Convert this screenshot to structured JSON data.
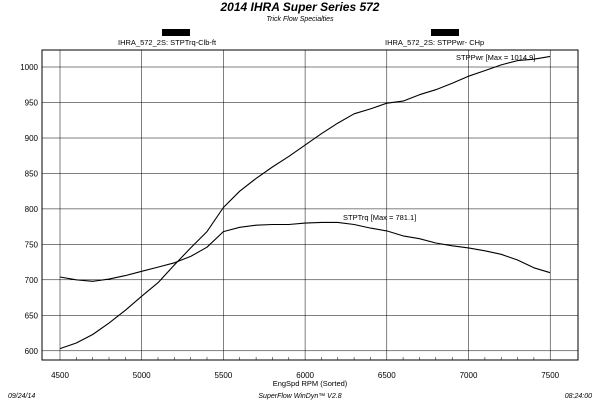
{
  "chart_data": {
    "type": "line",
    "title": "2014 IHRA Super Series 572",
    "subtitle": "Trick Flow Specialties",
    "xlabel": "EngSpd  RPM   (Sorted)",
    "x_ticks": [
      4500,
      5000,
      5500,
      6000,
      6500,
      7000,
      7500
    ],
    "y_ticks": [
      600,
      650,
      700,
      750,
      800,
      850,
      900,
      950,
      1000
    ],
    "xlim": [
      4390,
      7670
    ],
    "ylim": [
      587,
      1024
    ],
    "grid": true,
    "left_axis_label": "IHRA_572_2S: STPTrq-Clb-ft",
    "right_axis_label": "IHRA_572_2S: STPPwr- CHp",
    "annotations": [
      {
        "text": "STPPwr  [Max = 1014.9]"
      },
      {
        "text": "STPTrq  [Max = 781.1]"
      }
    ],
    "series": [
      {
        "name": "STPPwr",
        "x": [
          4500,
          4600,
          4700,
          4800,
          4900,
          5000,
          5100,
          5200,
          5300,
          5400,
          5500,
          5600,
          5700,
          5800,
          5900,
          6000,
          6100,
          6200,
          6300,
          6400,
          6500,
          6600,
          6700,
          6800,
          6900,
          7000,
          7100,
          7200,
          7300,
          7400,
          7500
        ],
        "values": [
          603,
          611,
          623,
          639,
          657,
          677,
          696,
          721,
          745,
          768,
          802,
          825,
          843,
          859,
          874,
          890,
          906,
          921,
          934,
          941,
          949,
          952,
          961,
          968,
          977,
          987,
          995,
          1003,
          1009,
          1011,
          1015
        ]
      },
      {
        "name": "STPTrq",
        "x": [
          4500,
          4600,
          4700,
          4800,
          4900,
          5000,
          5100,
          5200,
          5300,
          5400,
          5500,
          5600,
          5700,
          5800,
          5900,
          6000,
          6100,
          6200,
          6300,
          6400,
          6500,
          6600,
          6700,
          6800,
          6900,
          7000,
          7100,
          7200,
          7300,
          7400,
          7500
        ],
        "values": [
          704,
          700,
          698,
          701,
          706,
          712,
          718,
          724,
          733,
          746,
          768,
          774,
          777,
          778,
          778,
          780,
          781,
          781,
          778,
          773,
          769,
          762,
          758,
          752,
          748,
          745,
          741,
          736,
          728,
          717,
          710
        ]
      }
    ]
  },
  "footer": {
    "date": "09/24/14",
    "software": "SuperFlow WinDyn™ V2.8",
    "time": "08:24:00"
  },
  "colors": {
    "line": "#000000",
    "grid": "#000000",
    "background": "#ffffff"
  }
}
